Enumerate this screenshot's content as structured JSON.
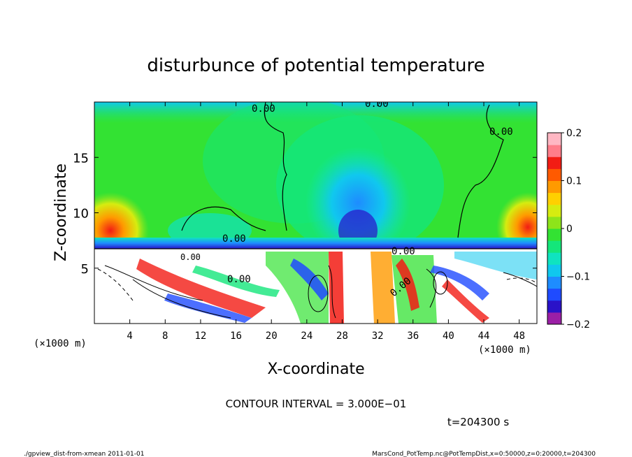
{
  "chart_data": {
    "type": "heatmap",
    "title": "disturbunce of potential temperature",
    "xlabel": "X-coordinate",
    "ylabel": "Z-coordinate",
    "x_unit_left": "(×1000 m)",
    "x_unit_right": "(×1000 m)",
    "xlim": [
      0,
      50
    ],
    "ylim": [
      0,
      20
    ],
    "x_ticks": [
      "4",
      "8",
      "12",
      "16",
      "20",
      "24",
      "28",
      "32",
      "36",
      "40",
      "44",
      "48"
    ],
    "y_ticks": [
      "5",
      "10",
      "15"
    ],
    "colorbar": {
      "range": [
        -0.2,
        0.2
      ],
      "tick_labels": [
        "0.2",
        "0.1",
        "0",
        "−0.1",
        "−0.2"
      ],
      "colors": [
        "#9b1fa6",
        "#2a12c8",
        "#1f4bff",
        "#1e8cff",
        "#10c8ee",
        "#0fe3c0",
        "#14e67a",
        "#33e233",
        "#8ee41a",
        "#d6ec10",
        "#ffd000",
        "#ff9a00",
        "#ff5a00",
        "#f21c14",
        "#ff7d8a",
        "#ffb7c3"
      ]
    },
    "contour_labels": [
      "0.00",
      "0.00",
      "0.00",
      "0.00",
      "0.00",
      "0.00",
      "0.00",
      "0.00"
    ],
    "contour_interval_text": "CONTOUR INTERVAL = 3.000E−01",
    "time_text": "t=204300 s",
    "footer_left": "./gpview_dist-from-xmean  2011-01-01",
    "footer_right": "MarsCond_PotTemp.nc@PotTempDist,x=0:50000,z=0:20000,t=204300"
  }
}
